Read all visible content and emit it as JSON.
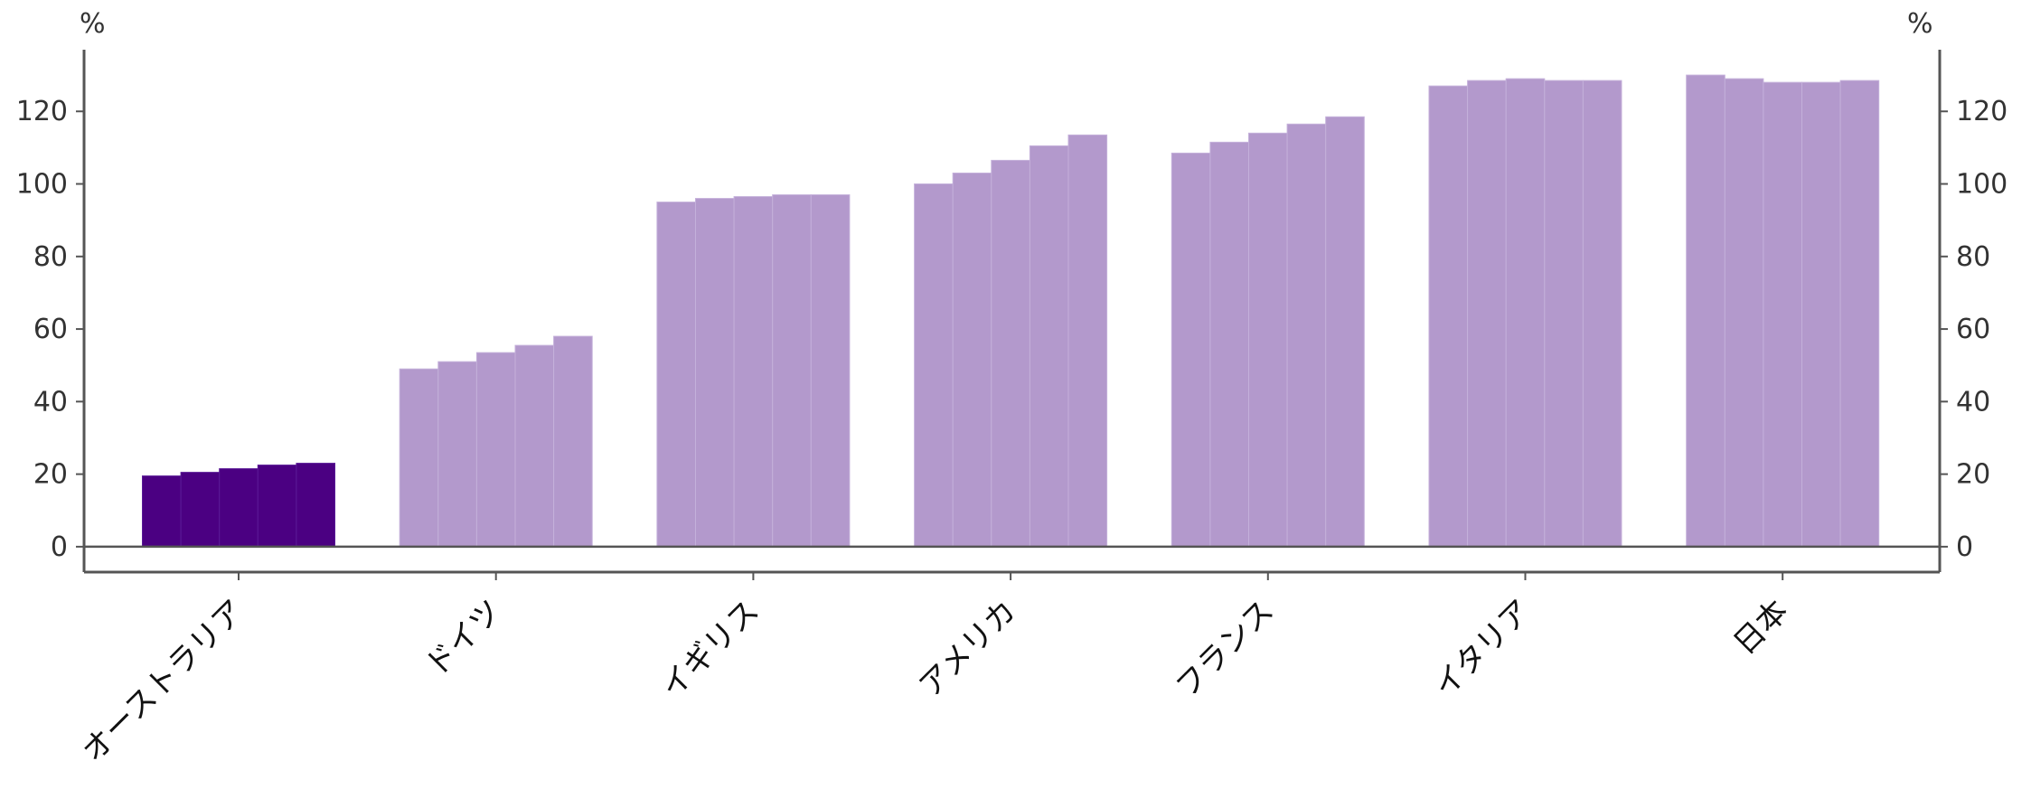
{
  "chart_data": {
    "type": "bar",
    "title": "",
    "xlabel": "",
    "ylabel": "",
    "y_unit_left": "%",
    "y_unit_right": "%",
    "ylim": [
      -7,
      137
    ],
    "yticks": [
      0,
      20,
      40,
      60,
      80,
      100,
      120
    ],
    "grid": false,
    "legend": "none",
    "colors": {
      "highlight": "#4b0082",
      "default": "#b399cc",
      "axis": "#555555",
      "text": "#333333"
    },
    "highlight_category": "オーストラリア",
    "categories": [
      "オーストラリア",
      "ドイツ",
      "イギリス",
      "アメリカ",
      "フランス",
      "イタリア",
      "日本"
    ],
    "groups": [
      {
        "category": "オーストラリア",
        "values": [
          19.5,
          20.5,
          21.5,
          22.5,
          23.0
        ]
      },
      {
        "category": "ドイツ",
        "values": [
          49.0,
          51.0,
          53.5,
          55.5,
          58.0
        ]
      },
      {
        "category": "イギリス",
        "values": [
          95.0,
          96.0,
          96.5,
          97.0,
          97.0
        ]
      },
      {
        "category": "アメリカ",
        "values": [
          100.0,
          103.0,
          106.5,
          110.5,
          113.5
        ]
      },
      {
        "category": "フランス",
        "values": [
          108.5,
          111.5,
          114.0,
          116.5,
          118.5
        ]
      },
      {
        "category": "イタリア",
        "values": [
          127.0,
          128.5,
          129.0,
          128.5,
          128.5
        ]
      },
      {
        "category": "日本",
        "values": [
          130.0,
          129.0,
          128.0,
          128.0,
          128.5
        ]
      }
    ]
  }
}
